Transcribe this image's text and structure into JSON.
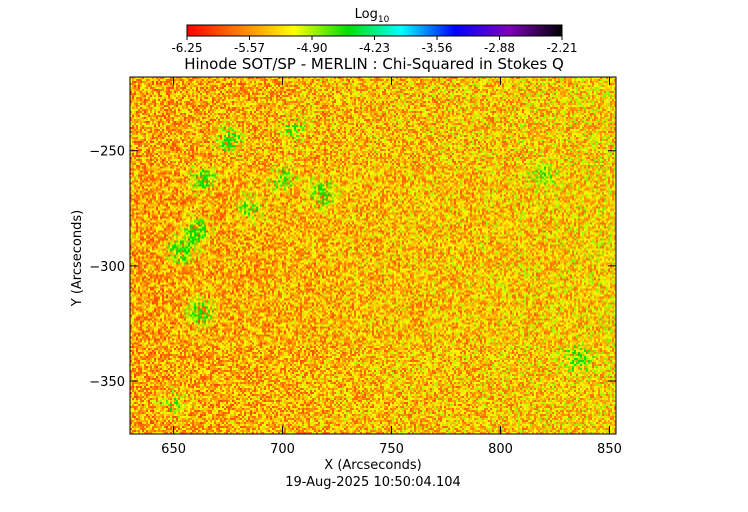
{
  "chart_data": {
    "type": "heatmap",
    "title": "Hinode SOT/SP - MERLIN : Chi-Squared in Stokes Q",
    "xlabel": "X (Arcseconds)",
    "ylabel": "Y (Arcseconds)",
    "xlim": [
      630,
      853
    ],
    "ylim": [
      -373,
      -218
    ],
    "xticks": [
      650,
      700,
      750,
      800,
      850
    ],
    "yticks": [
      -250,
      -300,
      -350
    ],
    "colorbar": {
      "label": "Log",
      "label_sub": "10",
      "range": [
        -6.25,
        -2.21
      ],
      "ticks": [
        "-6.25",
        "-5.57",
        "-4.90",
        "-4.23",
        "-3.56",
        "-2.88",
        "-2.21"
      ],
      "colormap": [
        "#ff0000",
        "#ff7f00",
        "#ffff00",
        "#00e000",
        "#00ffff",
        "#0000ff",
        "#8000c0",
        "#000000"
      ]
    },
    "background_log_value": -5.9,
    "low_signal_regions": [
      {
        "x": 675,
        "y": -245,
        "level": 0.55
      },
      {
        "x": 663,
        "y": -262,
        "level": 0.6
      },
      {
        "x": 660,
        "y": -285,
        "level": 0.7
      },
      {
        "x": 653,
        "y": -293,
        "level": 0.65
      },
      {
        "x": 662,
        "y": -320,
        "level": 0.65
      },
      {
        "x": 685,
        "y": -275,
        "level": 0.5
      },
      {
        "x": 700,
        "y": -262,
        "level": 0.5
      },
      {
        "x": 718,
        "y": -268,
        "level": 0.6
      },
      {
        "x": 705,
        "y": -240,
        "level": 0.4
      },
      {
        "x": 650,
        "y": -360,
        "level": 0.4
      },
      {
        "x": 835,
        "y": -340,
        "level": 0.45
      },
      {
        "x": 820,
        "y": -260,
        "level": 0.35
      }
    ]
  },
  "timestamp": "19-Aug-2025 10:50:04.104"
}
